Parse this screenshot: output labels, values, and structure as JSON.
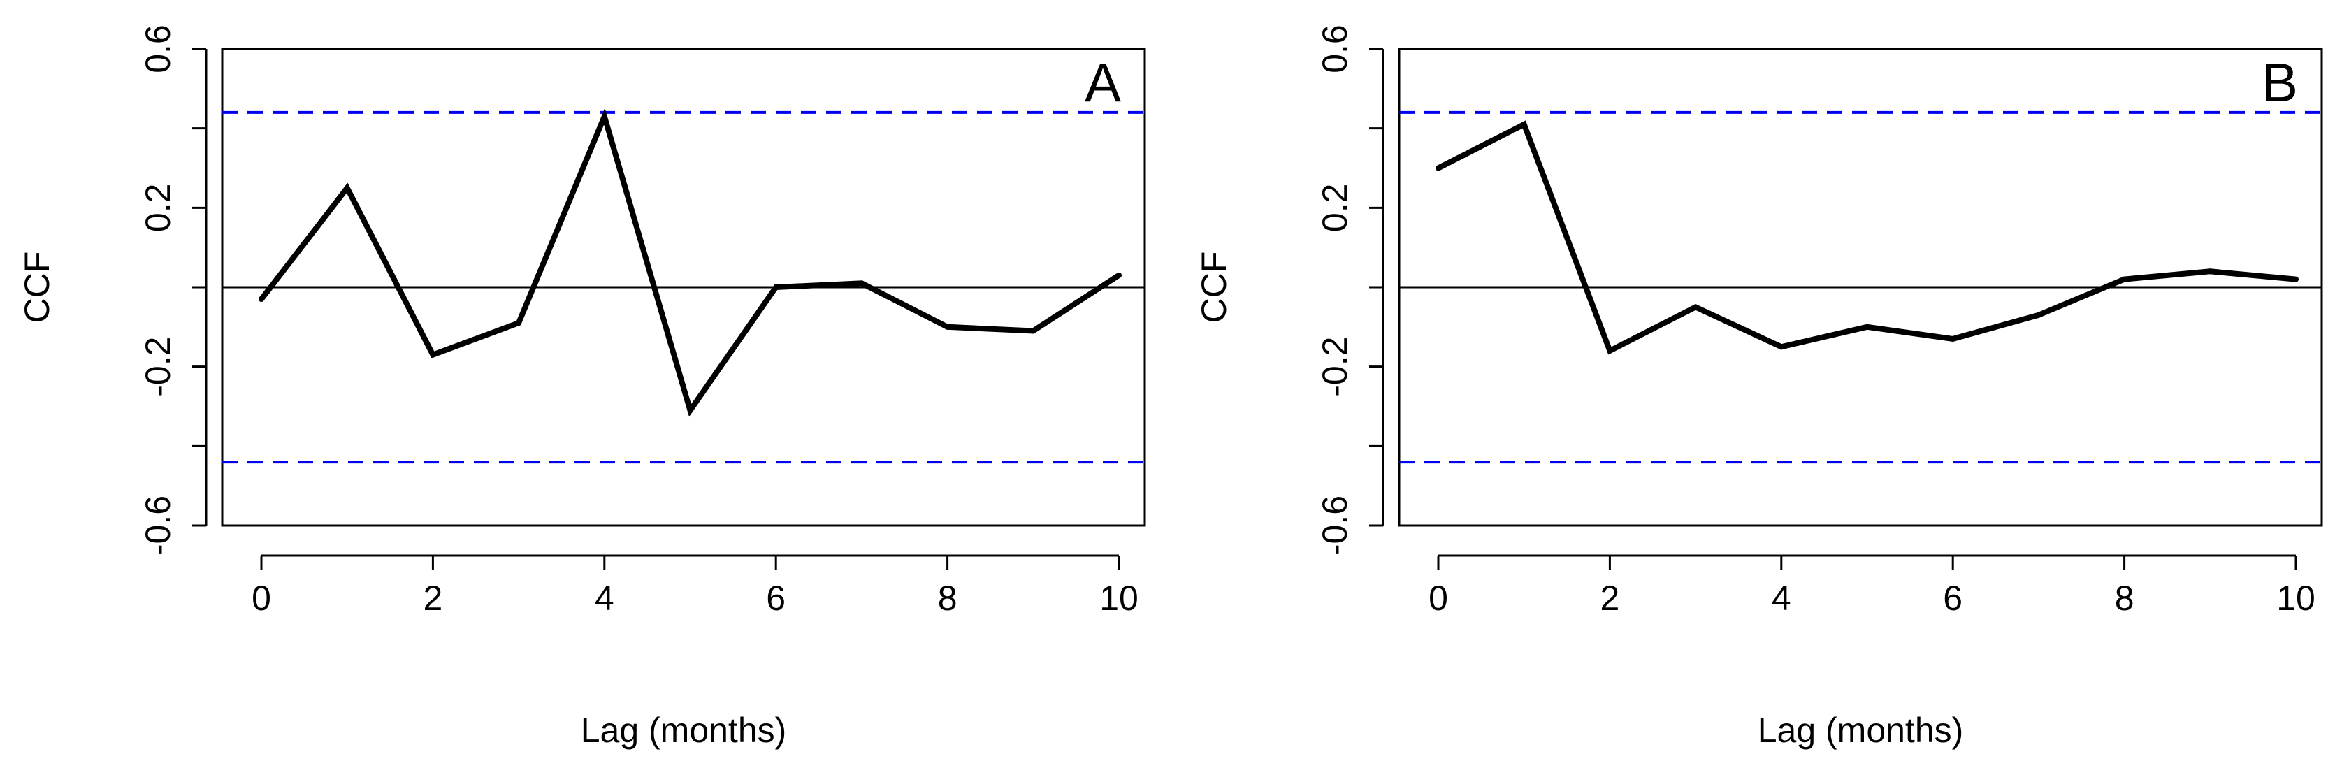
{
  "colors": {
    "series": "#000000",
    "significance": "#0000ee",
    "zero_line": "#000000",
    "frame": "#000000"
  },
  "chart_data": [
    {
      "type": "line",
      "panel_label": "A",
      "title": "",
      "xlabel": "Lag (months)",
      "ylabel": "CCF",
      "xlim": [
        0,
        10
      ],
      "ylim": [
        -0.6,
        0.6
      ],
      "x_ticks": [
        0,
        2,
        4,
        6,
        8,
        10
      ],
      "x_tick_labels": [
        "0",
        "2",
        "4",
        "6",
        "8",
        "10"
      ],
      "y_ticks": [
        -0.6,
        -0.2,
        0.2,
        0.6
      ],
      "y_tick_labels": [
        "-0.6",
        "-0.2",
        "0.2",
        "0.6"
      ],
      "grid": false,
      "series": [
        {
          "x": [
            0,
            1,
            2,
            3,
            4,
            5,
            6,
            7,
            8,
            9,
            10
          ],
          "values": [
            -0.03,
            0.25,
            -0.17,
            -0.09,
            0.43,
            -0.31,
            0.0,
            0.01,
            -0.1,
            -0.11,
            0.03
          ]
        }
      ],
      "reference_lines": {
        "significance": [
          0.44,
          -0.44
        ],
        "zero": 0.0
      }
    },
    {
      "type": "line",
      "panel_label": "B",
      "title": "",
      "xlabel": "Lag (months)",
      "ylabel": "CCF",
      "xlim": [
        0,
        10
      ],
      "ylim": [
        -0.6,
        0.6
      ],
      "x_ticks": [
        0,
        2,
        4,
        6,
        8,
        10
      ],
      "x_tick_labels": [
        "0",
        "2",
        "4",
        "6",
        "8",
        "10"
      ],
      "y_ticks": [
        -0.6,
        -0.2,
        0.2,
        0.6
      ],
      "y_tick_labels": [
        "-0.6",
        "-0.2",
        "0.2",
        "0.6"
      ],
      "grid": false,
      "series": [
        {
          "x": [
            0,
            1,
            2,
            3,
            4,
            5,
            6,
            7,
            8,
            9,
            10
          ],
          "values": [
            0.3,
            0.41,
            -0.16,
            -0.05,
            -0.15,
            -0.1,
            -0.13,
            -0.07,
            0.02,
            0.04,
            0.02
          ]
        }
      ],
      "reference_lines": {
        "significance": [
          0.44,
          -0.44
        ],
        "zero": 0.0
      }
    }
  ]
}
